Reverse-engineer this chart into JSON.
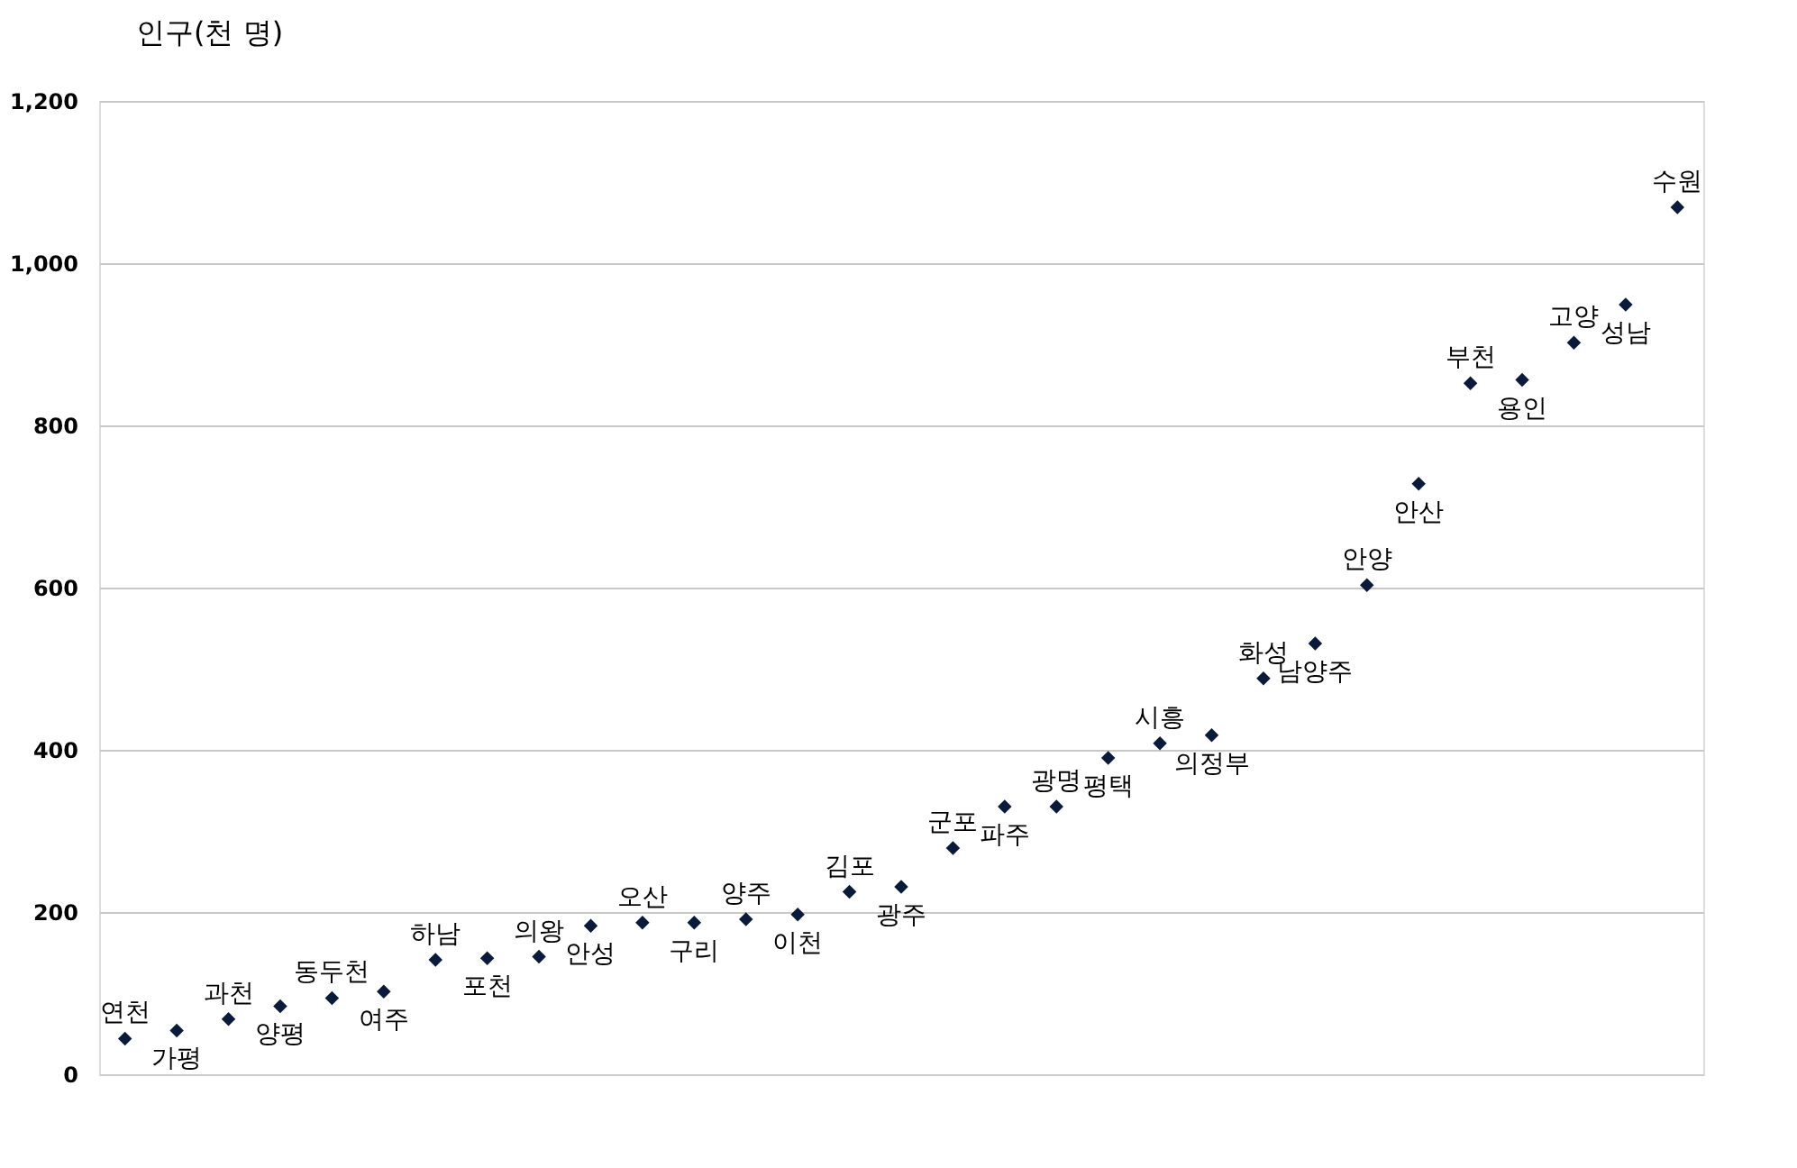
{
  "chart_data": {
    "type": "scatter",
    "ylabel": "인구(천 명)",
    "categories": [
      "연천",
      "가평",
      "과천",
      "양평",
      "동두천",
      "여주",
      "하남",
      "포천",
      "의왕",
      "안성",
      "오산",
      "구리",
      "양주",
      "이천",
      "김포",
      "광주",
      "군포",
      "파주",
      "광명",
      "평택",
      "시흥",
      "의정부",
      "화성",
      "남양주",
      "안양",
      "안산",
      "부천",
      "용인",
      "고양",
      "성남",
      "수원"
    ],
    "series": [
      {
        "color": "#0a1a3a",
        "values": [
          44,
          54,
          68,
          84,
          94,
          102,
          141,
          143,
          145,
          183,
          187,
          187,
          191,
          197,
          225,
          231,
          279,
          330,
          330,
          390,
          408,
          418,
          488,
          531,
          603,
          728,
          852,
          856,
          902,
          949,
          1069
        ]
      }
    ],
    "ylim": [
      0,
      1200
    ],
    "yticks": [
      0,
      200,
      400,
      600,
      800,
      {
        "value": 1000,
        "label": "1,000"
      },
      {
        "value": 1200,
        "label": "1,200"
      }
    ],
    "grid": "y",
    "marker": "diamond",
    "tick_labels": "y"
  }
}
